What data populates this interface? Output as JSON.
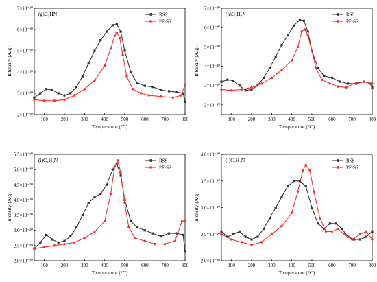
{
  "colors": {
    "rss": "#333333",
    "pfss": "#ff2a2a"
  },
  "chart_data": [
    {
      "type": "line",
      "title": "(g)C₃HN",
      "xlabel": "Temperature (°C)",
      "ylabel": "Intensity (A/g)",
      "xlim": [
        50,
        800
      ],
      "ylim": [
        2.0,
        7.0
      ],
      "xticks": [
        100,
        200,
        300,
        400,
        500,
        600,
        700,
        800
      ],
      "xtick_labels": [
        "100",
        "200",
        "300",
        "400",
        "500",
        "600",
        "700",
        "800"
      ],
      "yticks": [
        2,
        3,
        4,
        5,
        6,
        7
      ],
      "ytick_labels": [
        "2×10⁻¹⁰",
        "3×10⁻¹⁰",
        "4×10⁻¹⁰",
        "5×10⁻¹⁰",
        "6×10⁻¹⁰",
        "7×10⁻¹⁰"
      ],
      "legend": "top-right",
      "series": [
        {
          "name": "RSS",
          "marker": "square",
          "x": [
            50,
            80,
            110,
            140,
            170,
            200,
            230,
            260,
            290,
            320,
            350,
            380,
            410,
            440,
            460,
            480,
            500,
            530,
            560,
            600,
            640,
            680,
            720,
            760,
            790,
            800
          ],
          "y": [
            2.8,
            3.0,
            3.2,
            3.15,
            3.0,
            2.9,
            3.0,
            3.3,
            3.8,
            4.4,
            5.0,
            5.5,
            5.9,
            6.2,
            6.25,
            5.9,
            5.0,
            4.0,
            3.5,
            3.35,
            3.3,
            3.15,
            3.1,
            3.05,
            3.0,
            2.6
          ]
        },
        {
          "name": "PF-SS",
          "marker": "circle",
          "x": [
            50,
            100,
            150,
            200,
            250,
            300,
            350,
            400,
            430,
            450,
            460,
            475,
            490,
            510,
            540,
            580,
            620,
            680,
            740,
            780,
            800
          ],
          "y": [
            2.7,
            2.65,
            2.65,
            2.7,
            2.9,
            3.2,
            3.6,
            4.3,
            5.1,
            5.7,
            5.85,
            5.6,
            4.8,
            3.8,
            3.2,
            3.0,
            2.9,
            2.85,
            2.8,
            2.9,
            3.4
          ]
        }
      ]
    },
    {
      "type": "line",
      "title": "(h)C₃H₃N",
      "xlabel": "Temperature (°C)",
      "ylabel": "Intensity (A/g)",
      "xlim": [
        50,
        800
      ],
      "ylim": [
        1.5,
        7.0
      ],
      "xticks": [
        100,
        200,
        300,
        400,
        500,
        600,
        700,
        800
      ],
      "xtick_labels": [
        "100",
        "200",
        "300",
        "400",
        "500",
        "600",
        "700",
        "800"
      ],
      "yticks": [
        2,
        3,
        4,
        5,
        6,
        7
      ],
      "ytick_labels": [
        "2×10⁻¹⁰",
        "3×10⁻¹⁰",
        "4×10⁻¹⁰",
        "5×10⁻¹⁰",
        "6×10⁻¹⁰",
        "7×10⁻¹⁰"
      ],
      "legend": "top-right",
      "series": [
        {
          "name": "RSS",
          "marker": "square",
          "x": [
            50,
            80,
            110,
            140,
            170,
            200,
            230,
            260,
            290,
            320,
            350,
            380,
            410,
            440,
            460,
            480,
            500,
            530,
            560,
            600,
            640,
            680,
            720,
            760,
            790,
            800
          ],
          "y": [
            3.2,
            3.3,
            3.25,
            3.0,
            2.75,
            2.8,
            3.0,
            3.4,
            3.9,
            4.5,
            5.1,
            5.6,
            6.1,
            6.4,
            6.35,
            5.8,
            4.8,
            3.9,
            3.5,
            3.4,
            3.2,
            3.1,
            3.1,
            3.2,
            3.1,
            2.9
          ]
        },
        {
          "name": "PF-SS",
          "marker": "circle",
          "x": [
            50,
            100,
            150,
            200,
            250,
            300,
            350,
            400,
            430,
            450,
            465,
            480,
            500,
            520,
            550,
            590,
            630,
            670,
            720,
            760,
            800
          ],
          "y": [
            2.8,
            2.75,
            2.8,
            2.9,
            3.1,
            3.4,
            3.8,
            4.3,
            5.0,
            5.8,
            5.9,
            5.6,
            4.8,
            3.9,
            3.3,
            3.1,
            2.95,
            2.9,
            3.15,
            3.2,
            3.1
          ]
        }
      ]
    },
    {
      "type": "line",
      "title": "(i)C₄H₅N",
      "xlabel": "Temperature (°C)",
      "ylabel": "Intensity (A/g)",
      "xlim": [
        50,
        800
      ],
      "ylim": [
        2.0,
        5.5
      ],
      "xticks": [
        100,
        200,
        300,
        400,
        500,
        600,
        700,
        800
      ],
      "xtick_labels": [
        "100",
        "200",
        "300",
        "400",
        "500",
        "600",
        "700",
        "800"
      ],
      "yticks": [
        2.0,
        2.5,
        3.0,
        3.5,
        4.0,
        4.5,
        5.0,
        5.5
      ],
      "ytick_labels": [
        "2.0×10⁻¹⁰",
        "2.5×10⁻¹⁰",
        "3.0×10⁻¹⁰",
        "3.5×10⁻¹⁰",
        "4.0×10⁻¹⁰",
        "4.5×10⁻¹⁰",
        "5.0×10⁻¹⁰",
        "5.5×10⁻¹⁰"
      ],
      "legend": "top-right",
      "series": [
        {
          "name": "RSS",
          "marker": "square",
          "x": [
            50,
            80,
            110,
            140,
            170,
            200,
            230,
            260,
            290,
            320,
            350,
            380,
            410,
            440,
            460,
            480,
            500,
            530,
            560,
            600,
            640,
            680,
            720,
            760,
            790,
            800
          ],
          "y": [
            2.4,
            2.6,
            2.85,
            2.7,
            2.6,
            2.65,
            2.8,
            3.1,
            3.5,
            3.9,
            4.1,
            4.2,
            4.5,
            5.0,
            5.2,
            4.8,
            4.0,
            3.3,
            3.1,
            3.0,
            2.9,
            2.8,
            2.9,
            2.9,
            2.85,
            2.3
          ]
        },
        {
          "name": "PF-SS",
          "marker": "circle",
          "x": [
            50,
            100,
            150,
            200,
            250,
            300,
            350,
            400,
            430,
            450,
            465,
            480,
            500,
            520,
            550,
            600,
            650,
            700,
            750,
            785,
            800
          ],
          "y": [
            2.4,
            2.45,
            2.5,
            2.55,
            2.6,
            2.75,
            2.95,
            3.3,
            4.2,
            5.1,
            5.3,
            4.9,
            3.9,
            3.1,
            2.75,
            2.65,
            2.55,
            2.55,
            2.65,
            3.3,
            3.3
          ]
        }
      ]
    },
    {
      "type": "line",
      "title": "(j)C₅H₇N",
      "xlabel": "Temperature (°C)",
      "ylabel": "Intensity (A/g)",
      "xlim": [
        50,
        800
      ],
      "ylim": [
        2.0,
        4.0
      ],
      "xticks": [
        100,
        200,
        300,
        400,
        500,
        600,
        700,
        800
      ],
      "xtick_labels": [
        "100",
        "200",
        "300",
        "400",
        "500",
        "600",
        "700",
        "800"
      ],
      "yticks": [
        2.0,
        2.5,
        3.0,
        3.5,
        4.0
      ],
      "ytick_labels": [
        "2.0×10⁻¹⁰",
        "2.5×10⁻¹⁰",
        "3.0×10⁻¹⁰",
        "3.5×10⁻¹⁰",
        "4.0×10⁻¹⁰"
      ],
      "legend": "top-right",
      "series": [
        {
          "name": "RSS",
          "marker": "square",
          "x": [
            50,
            80,
            110,
            140,
            170,
            200,
            230,
            260,
            290,
            320,
            350,
            380,
            410,
            440,
            470,
            500,
            530,
            560,
            590,
            620,
            650,
            680,
            710,
            740,
            770,
            800
          ],
          "y": [
            2.55,
            2.45,
            2.5,
            2.55,
            2.45,
            2.4,
            2.45,
            2.6,
            2.8,
            3.0,
            3.2,
            3.4,
            3.5,
            3.5,
            3.4,
            3.0,
            2.7,
            2.6,
            2.7,
            2.7,
            2.6,
            2.45,
            2.4,
            2.4,
            2.45,
            2.55
          ]
        },
        {
          "name": "PF-SS",
          "marker": "circle",
          "x": [
            50,
            100,
            150,
            200,
            250,
            300,
            350,
            400,
            430,
            455,
            470,
            490,
            510,
            540,
            570,
            600,
            630,
            660,
            700,
            740,
            770,
            800
          ],
          "y": [
            2.5,
            2.4,
            2.35,
            2.3,
            2.35,
            2.5,
            2.65,
            2.9,
            3.3,
            3.7,
            3.8,
            3.7,
            3.3,
            2.8,
            2.55,
            2.55,
            2.6,
            2.5,
            2.4,
            2.5,
            2.55,
            2.4
          ]
        }
      ]
    }
  ]
}
